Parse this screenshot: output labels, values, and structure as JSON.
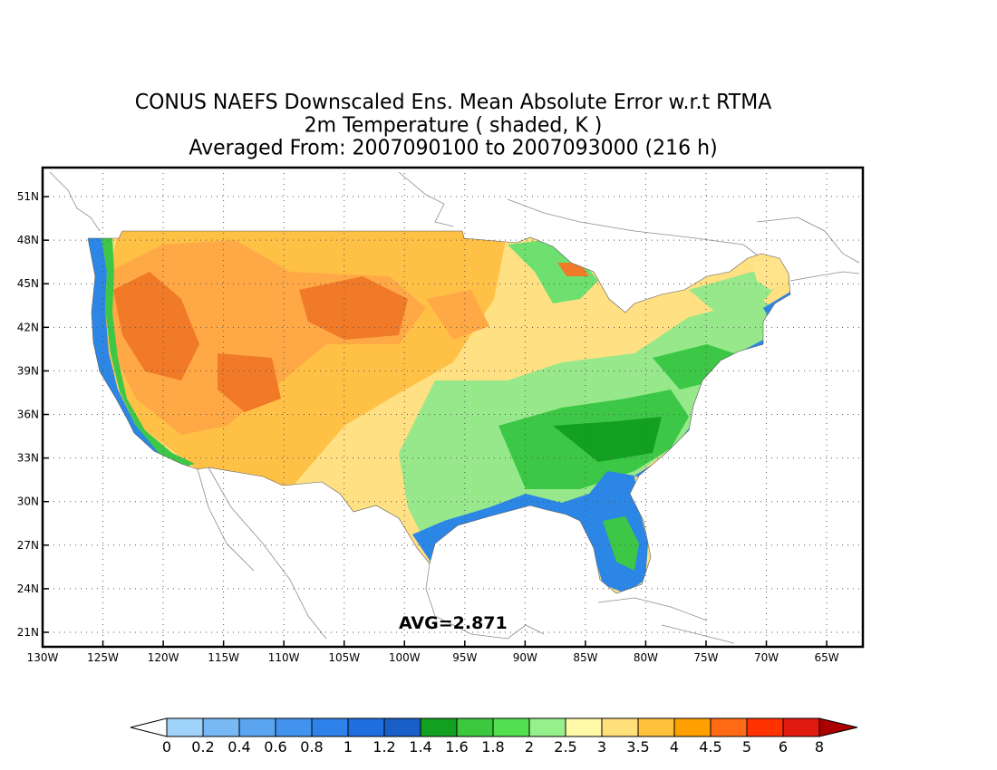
{
  "title": {
    "line1": "CONUS NAEFS Downscaled Ens. Mean Absolute Error w.r.t RTMA",
    "line2": "2m Temperature ( shaded, K )",
    "line3": "Averaged From: 2007090100 to 2007093000 (216 h)"
  },
  "annotation": {
    "avg": "AVG=2.871"
  },
  "map": {
    "projection": "lat-lon",
    "lon_range": [
      -130,
      -62
    ],
    "lat_range": [
      20,
      53
    ],
    "grid": "dotted",
    "lon_ticks": [
      "130W",
      "125W",
      "120W",
      "115W",
      "110W",
      "105W",
      "100W",
      "95W",
      "90W",
      "85W",
      "80W",
      "75W",
      "70W",
      "65W"
    ],
    "lat_ticks": [
      "21N",
      "24N",
      "27N",
      "30N",
      "33N",
      "36N",
      "39N",
      "42N",
      "45N",
      "48N",
      "51N"
    ]
  },
  "colorbar": {
    "labels": [
      "0",
      "0.2",
      "0.4",
      "0.6",
      "0.8",
      "1",
      "1.2",
      "1.4",
      "1.6",
      "1.8",
      "2",
      "2.5",
      "3",
      "3.5",
      "4",
      "4.5",
      "5",
      "6",
      "8"
    ],
    "colors": [
      "#9fd3fa",
      "#78b9f5",
      "#5aa4f0",
      "#4293ee",
      "#2f82e9",
      "#1f6ee0",
      "#1a5fc8",
      "#12a020",
      "#3cc83c",
      "#50e050",
      "#96f08c",
      "#fffaa8",
      "#ffe07a",
      "#ffc03c",
      "#ffa000",
      "#ff6a14",
      "#ff3200",
      "#e11a10",
      "#aa0000"
    ],
    "under_color": "#ffffff",
    "over_color": "#aa0000"
  },
  "zones": {
    "west_hot": "#f07a28",
    "rockies_orange": "#ffa846",
    "plains_orange": "#ffc046",
    "midwest_yellow": "#ffe082",
    "east_green": "#96e88a",
    "southeast_green": "#3cc846",
    "coast_blue": "#2c86e6",
    "lake_green": "#6ee070",
    "ne_yellow": "#ffe48c"
  }
}
